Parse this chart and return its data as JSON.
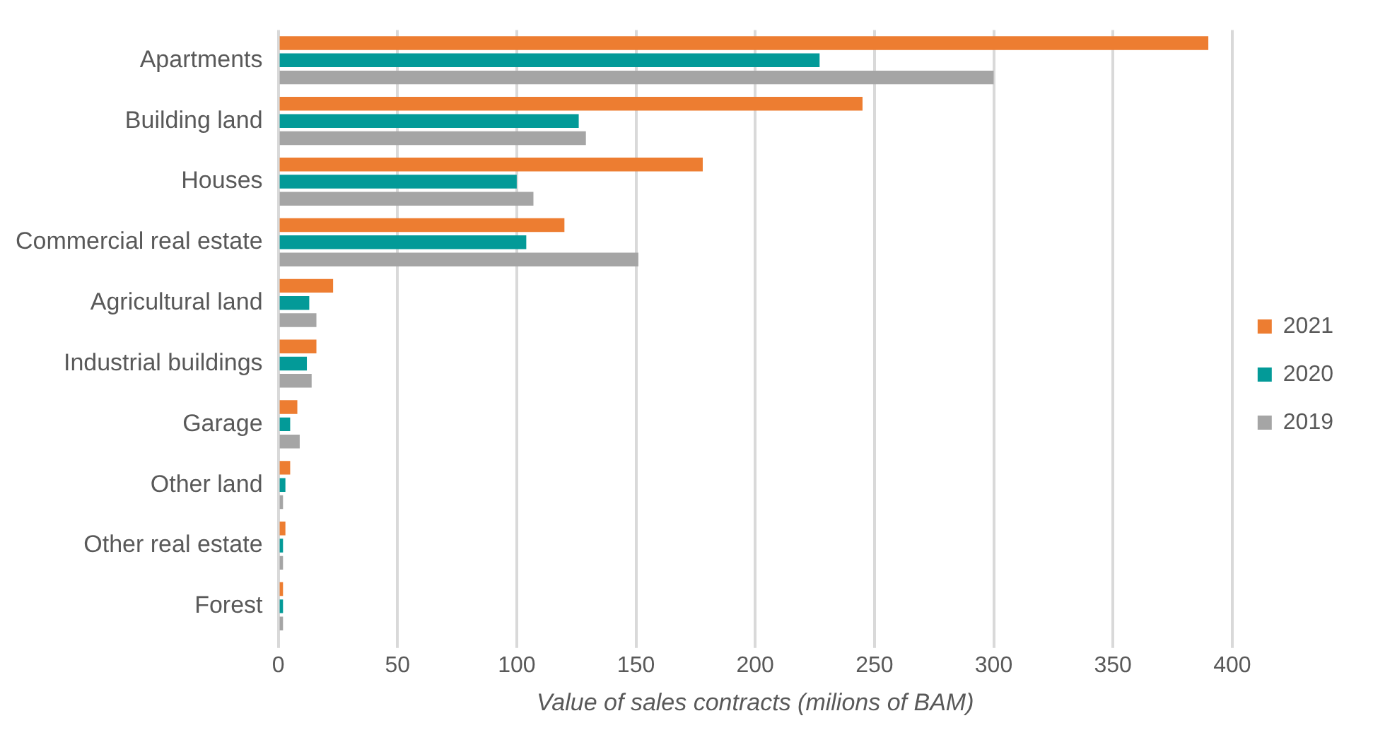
{
  "chart_data": {
    "type": "bar",
    "orientation": "horizontal",
    "xlabel": "Value of sales contracts (milions of BAM)",
    "categories": [
      "Apartments",
      "Building land",
      "Houses",
      "Commercial real estate",
      "Agricultural land",
      "Industrial buildings",
      "Garage",
      "Other land",
      "Other real estate",
      "Forest"
    ],
    "series": [
      {
        "name": "2021",
        "color": "#ed7d31",
        "values": [
          390,
          245,
          178,
          120,
          23,
          16,
          8,
          5,
          3,
          2
        ]
      },
      {
        "name": "2020",
        "color": "#039a98",
        "values": [
          227,
          126,
          100,
          104,
          13,
          12,
          5,
          3,
          2,
          2
        ]
      },
      {
        "name": "2019",
        "color": "#a5a5a5",
        "values": [
          300,
          129,
          107,
          151,
          16,
          14,
          9,
          2,
          2,
          2
        ]
      }
    ],
    "xlim": [
      0,
      400
    ],
    "xticks": [
      0,
      50,
      100,
      150,
      200,
      250,
      300,
      350,
      400
    ],
    "grid": "x",
    "legend": "right"
  }
}
